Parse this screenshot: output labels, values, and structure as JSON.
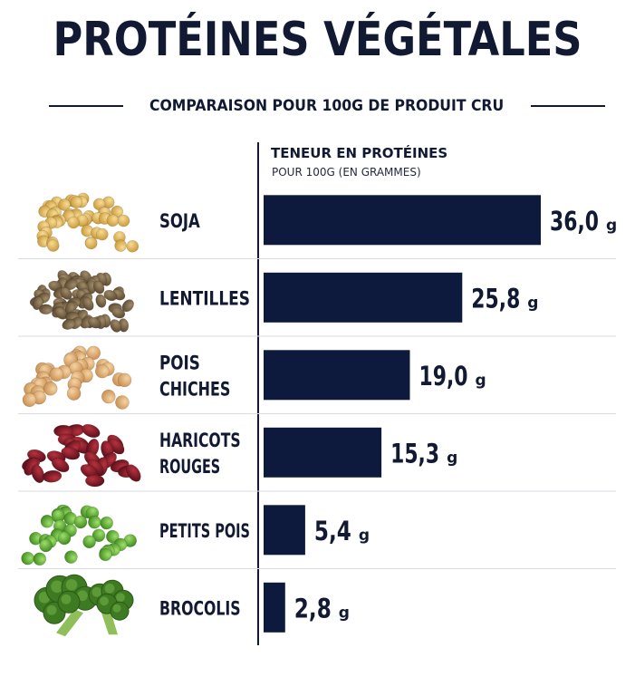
{
  "header": {
    "title": "PROTÉINES VÉGÉTALES",
    "subtitle": "COMPARAISON POUR 100G DE PRODUIT CRU"
  },
  "measure": {
    "title": "TENEUR EN PROTÉINES",
    "subtitle": "POUR 100G (EN GRAMMES)"
  },
  "colors": {
    "bar": "#0d1a3d",
    "text": "#121a33"
  },
  "chart_data": {
    "type": "bar",
    "orientation": "horizontal",
    "title": "PROTÉINES VÉGÉTALES",
    "subtitle": "COMPARAISON POUR 100G DE PRODUIT CRU",
    "xlabel": "TENEUR EN PROTÉINES",
    "ylabel": "",
    "unit": "g",
    "categories": [
      [
        "SOJA"
      ],
      [
        "LENTILLES"
      ],
      [
        "POIS",
        "CHICHES"
      ],
      [
        "HARICOTS",
        "ROUGES"
      ],
      [
        "PETITS POIS"
      ],
      [
        "BROCOLIS"
      ]
    ],
    "values": [
      36.0,
      25.8,
      19.0,
      15.3,
      5.4,
      2.8
    ],
    "value_labels": [
      "36,0",
      "25,8",
      "19,0",
      "15,3",
      "5,4",
      "2,8"
    ],
    "icons": [
      "soybeans-icon",
      "lentils-icon",
      "chickpeas-icon",
      "kidney-beans-icon",
      "peas-icon",
      "broccoli-icon"
    ],
    "xlim": [
      0,
      36.0
    ],
    "grid": false,
    "legend": "none"
  }
}
